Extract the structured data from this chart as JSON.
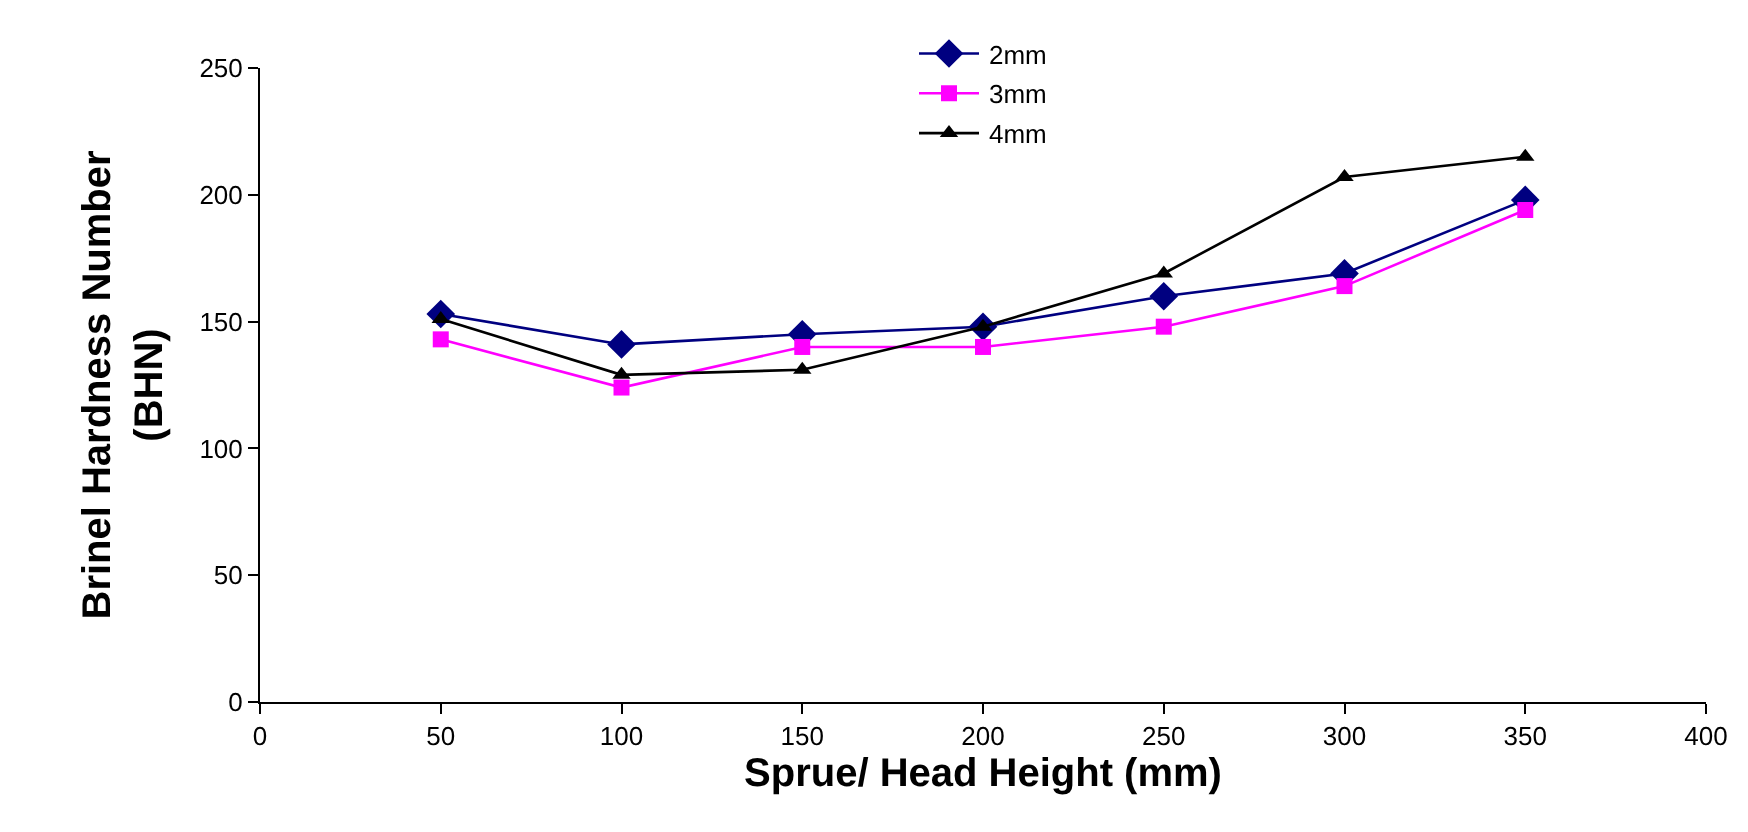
{
  "chart_data": {
    "type": "line",
    "xlabel": "Sprue/ Head Height (mm)",
    "ylabel": "Brinel Hardness Number\n(BHN)",
    "x": [
      50,
      100,
      150,
      200,
      250,
      300,
      350
    ],
    "series": [
      {
        "name": "2mm",
        "color": "#000080",
        "marker": "diamond",
        "values": [
          153,
          141,
          145,
          148,
          160,
          169,
          198
        ]
      },
      {
        "name": "3mm",
        "color": "#ff00ff",
        "marker": "square",
        "values": [
          143,
          124,
          140,
          140,
          148,
          164,
          194
        ]
      },
      {
        "name": "4mm",
        "color": "#000000",
        "marker": "triangle",
        "values": [
          151,
          129,
          131,
          148,
          169,
          207,
          215
        ]
      }
    ],
    "xlim": [
      0,
      400
    ],
    "xticks": [
      0,
      50,
      100,
      150,
      200,
      250,
      300,
      350,
      400
    ],
    "ylim": [
      0,
      250
    ],
    "yticks": [
      0,
      50,
      100,
      150,
      200,
      250
    ],
    "grid": false,
    "legend": "top",
    "line_style": "solid"
  }
}
